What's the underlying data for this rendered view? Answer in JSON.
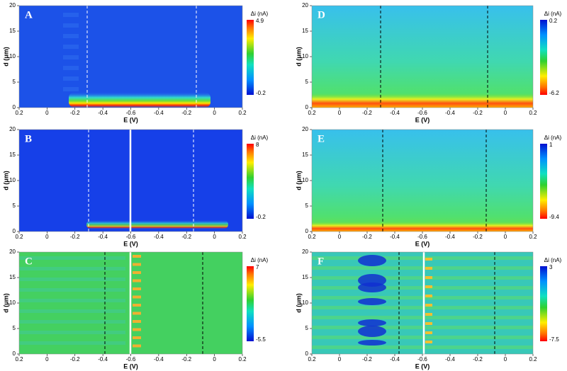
{
  "chart_data": [
    {
      "type": "heatmap",
      "label": "A",
      "xlabel": "E (V)",
      "ylabel": "d (μm)",
      "xticks": [
        0.2,
        0,
        -0.2,
        -0.4,
        -0.6,
        -0.4,
        -0.2,
        0,
        0.2
      ],
      "ylim": [
        0,
        20
      ],
      "yticks": [
        0,
        5,
        10,
        15,
        20
      ],
      "colorbar_label": "Δi (nA)",
      "clim": [
        -0.2,
        4.9
      ],
      "colormap": "jet"
    },
    {
      "type": "heatmap",
      "label": "B",
      "xlabel": "E (V)",
      "ylabel": "d (μm)",
      "xticks": [
        0.2,
        0,
        -0.2,
        -0.4,
        -0.6,
        -0.4,
        -0.2,
        0,
        0.2
      ],
      "ylim": [
        0,
        20
      ],
      "yticks": [
        0,
        5,
        10,
        15,
        20
      ],
      "colorbar_label": "Δi (nA)",
      "clim": [
        -0.2,
        8.0
      ],
      "colormap": "jet"
    },
    {
      "type": "heatmap",
      "label": "C",
      "xlabel": "E (V)",
      "ylabel": "d (μm)",
      "xticks": [
        0.2,
        0,
        -0.2,
        -0.4,
        -0.6,
        -0.4,
        -0.2,
        0,
        0.2
      ],
      "ylim": [
        0,
        20
      ],
      "yticks": [
        0,
        5,
        10,
        15,
        20
      ],
      "colorbar_label": "Δi (nA)",
      "clim": [
        -5.5,
        7.0
      ],
      "colormap": "jet"
    },
    {
      "type": "heatmap",
      "label": "D",
      "xlabel": "E (V)",
      "ylabel": "d (μm)",
      "xticks": [
        0.2,
        0,
        -0.2,
        -0.4,
        -0.6,
        -0.4,
        -0.2,
        0,
        0.2
      ],
      "ylim": [
        0,
        20
      ],
      "yticks": [
        0,
        5,
        10,
        15,
        20
      ],
      "colorbar_label": "Δi (nA)",
      "clim": [
        -6.2,
        0.2
      ],
      "colormap": "jet_r"
    },
    {
      "type": "heatmap",
      "label": "E",
      "xlabel": "E (V)",
      "ylabel": "d (μm)",
      "xticks": [
        0.2,
        0,
        -0.2,
        -0.4,
        -0.6,
        -0.4,
        -0.2,
        0,
        0.2
      ],
      "ylim": [
        0,
        20
      ],
      "yticks": [
        0,
        5,
        10,
        15,
        20
      ],
      "colorbar_label": "Δi (nA)",
      "clim": [
        -9.4,
        1.0
      ],
      "colormap": "jet_r"
    },
    {
      "type": "heatmap",
      "label": "F",
      "xlabel": "E (V)",
      "ylabel": "d (μm)",
      "xticks": [
        0.2,
        0,
        -0.2,
        -0.4,
        -0.6,
        -0.4,
        -0.2,
        0,
        0.2
      ],
      "ylim": [
        0,
        20
      ],
      "yticks": [
        0,
        5,
        10,
        15,
        20
      ],
      "colorbar_label": "Δi (nA)",
      "clim": [
        -7.5,
        3.0
      ],
      "colormap": "jet_r"
    }
  ]
}
